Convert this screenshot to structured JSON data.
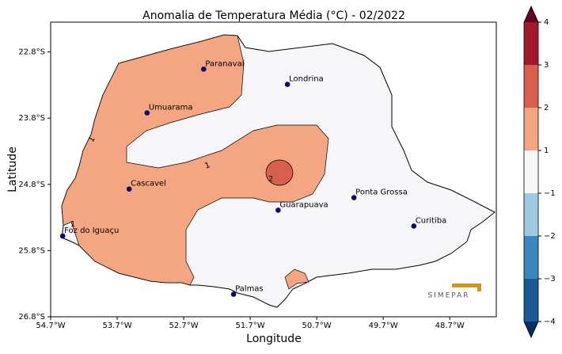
{
  "chart_data": {
    "type": "map",
    "title": "Anomalia de Temperatura Média (°C) - 02/2022",
    "x_label": "Longitude",
    "y_label": "Latitude",
    "xlim": [
      -54.7,
      -48.0
    ],
    "ylim": [
      -26.8,
      -22.35
    ],
    "xticks": [
      {
        "value": -54.7,
        "label": "54.7°W"
      },
      {
        "value": -53.7,
        "label": "53.7°W"
      },
      {
        "value": -52.7,
        "label": "52.7°W"
      },
      {
        "value": -51.7,
        "label": "51.7°W"
      },
      {
        "value": -50.7,
        "label": "50.7°W"
      },
      {
        "value": -49.7,
        "label": "49.7°W"
      },
      {
        "value": -48.7,
        "label": "48.7°W"
      }
    ],
    "yticks": [
      {
        "value": -22.8,
        "label": "22.8°S"
      },
      {
        "value": -23.8,
        "label": "23.8°S"
      },
      {
        "value": -24.8,
        "label": "24.8°S"
      },
      {
        "value": -25.8,
        "label": "25.8°S"
      },
      {
        "value": -26.8,
        "label": "26.8°S"
      }
    ],
    "cities": [
      {
        "name": "Paranavaí",
        "lon": -52.4,
        "lat": -23.06
      },
      {
        "name": "Londrina",
        "lon": -51.14,
        "lat": -23.29
      },
      {
        "name": "Umuarama",
        "lon": -53.25,
        "lat": -23.72
      },
      {
        "name": "Cascavel",
        "lon": -53.52,
        "lat": -24.87
      },
      {
        "name": "Guarapuava",
        "lon": -51.28,
        "lat": -25.19
      },
      {
        "name": "Ponta Grossa",
        "lon": -50.14,
        "lat": -25.0
      },
      {
        "name": "Curitiba",
        "lon": -49.24,
        "lat": -25.43
      },
      {
        "name": "Foz do Iguaçu",
        "lon": -54.52,
        "lat": -25.58
      },
      {
        "name": "Palmas",
        "lon": -51.95,
        "lat": -26.46
      }
    ],
    "city_color": "#0a0a6e",
    "contour_levels": [
      1,
      2
    ],
    "logo": "SIMEPAR",
    "colorbar": {
      "ticks": [
        {
          "value": -4,
          "label": "−4"
        },
        {
          "value": -3,
          "label": "−3"
        },
        {
          "value": -2,
          "label": "−2"
        },
        {
          "value": -1,
          "label": "−1"
        },
        1,
        2,
        3,
        4
      ],
      "colors": [
        "#1a5a98",
        "#3a87bf",
        "#9ecae1",
        "#f7f7f7",
        "#f4a582",
        "#d6604d",
        "#a2182c"
      ],
      "extend_colors": [
        "#053061",
        "#67001f"
      ]
    }
  }
}
